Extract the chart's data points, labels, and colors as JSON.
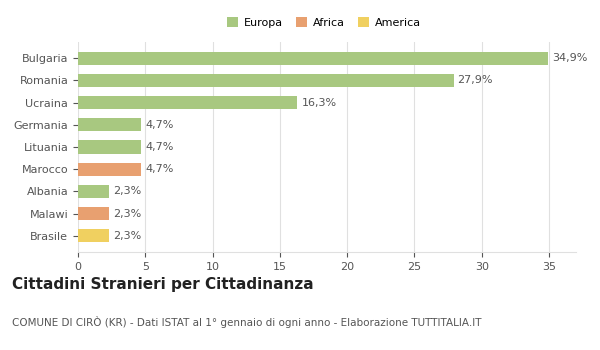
{
  "categories": [
    "Brasile",
    "Malawi",
    "Albania",
    "Marocco",
    "Lituania",
    "Germania",
    "Ucraina",
    "Romania",
    "Bulgaria"
  ],
  "values": [
    2.3,
    2.3,
    2.3,
    4.7,
    4.7,
    4.7,
    16.3,
    27.9,
    34.9
  ],
  "labels": [
    "2,3%",
    "2,3%",
    "2,3%",
    "4,7%",
    "4,7%",
    "4,7%",
    "16,3%",
    "27,9%",
    "34,9%"
  ],
  "colors": [
    "#f0d060",
    "#e8a070",
    "#a8c880",
    "#e8a070",
    "#a8c880",
    "#a8c880",
    "#a8c880",
    "#a8c880",
    "#a8c880"
  ],
  "legend": [
    {
      "label": "Europa",
      "color": "#a8c880"
    },
    {
      "label": "Africa",
      "color": "#e8a070"
    },
    {
      "label": "America",
      "color": "#f0d060"
    }
  ],
  "title": "Cittadini Stranieri per Cittadinanza",
  "subtitle": "COMUNE DI CIRÒ (KR) - Dati ISTAT al 1° gennaio di ogni anno - Elaborazione TUTTITALIA.IT",
  "xlim": [
    0,
    37
  ],
  "xticks": [
    0,
    5,
    10,
    15,
    20,
    25,
    30,
    35
  ],
  "background_color": "#ffffff",
  "bar_height": 0.6,
  "label_fontsize": 8,
  "title_fontsize": 11,
  "subtitle_fontsize": 7.5,
  "tick_fontsize": 8,
  "ytick_fontsize": 8,
  "grid_color": "#e0e0e0",
  "text_color": "#555555",
  "title_color": "#222222"
}
